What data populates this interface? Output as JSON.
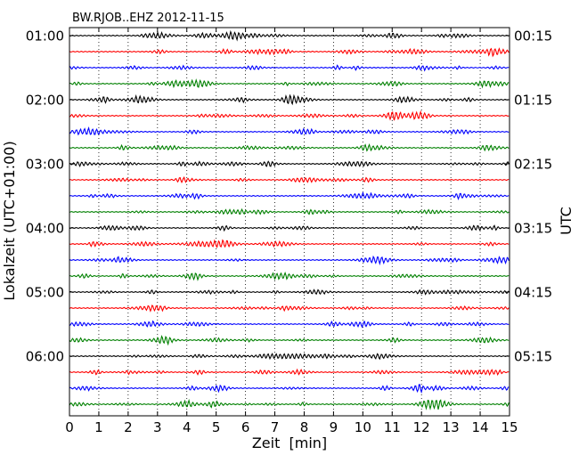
{
  "chart_data": {
    "type": "line",
    "title": "BW.RJOB..EHZ 2012-11-15",
    "xlabel": "Zeit  [min]",
    "ylabel": "Lokalzeit (UTC+01:00)",
    "ylabel_right": "UTC",
    "xlim": [
      0,
      15
    ],
    "x_ticks": [
      "0",
      "1",
      "2",
      "3",
      "4",
      "5",
      "6",
      "7",
      "8",
      "9",
      "10",
      "11",
      "12",
      "13",
      "14",
      "15"
    ],
    "left_tick_labels": [
      "01:00",
      "02:00",
      "03:00",
      "04:00",
      "05:00",
      "06:00"
    ],
    "right_tick_labels": [
      "00:15",
      "01:15",
      "02:15",
      "03:15",
      "04:15",
      "05:15"
    ],
    "trace_minutes": 15,
    "trace_colors": [
      "#000000",
      "#ff0000",
      "#0000ff",
      "#008000"
    ],
    "grid": "vertical dotted at each minute",
    "trace_count": 24
  }
}
